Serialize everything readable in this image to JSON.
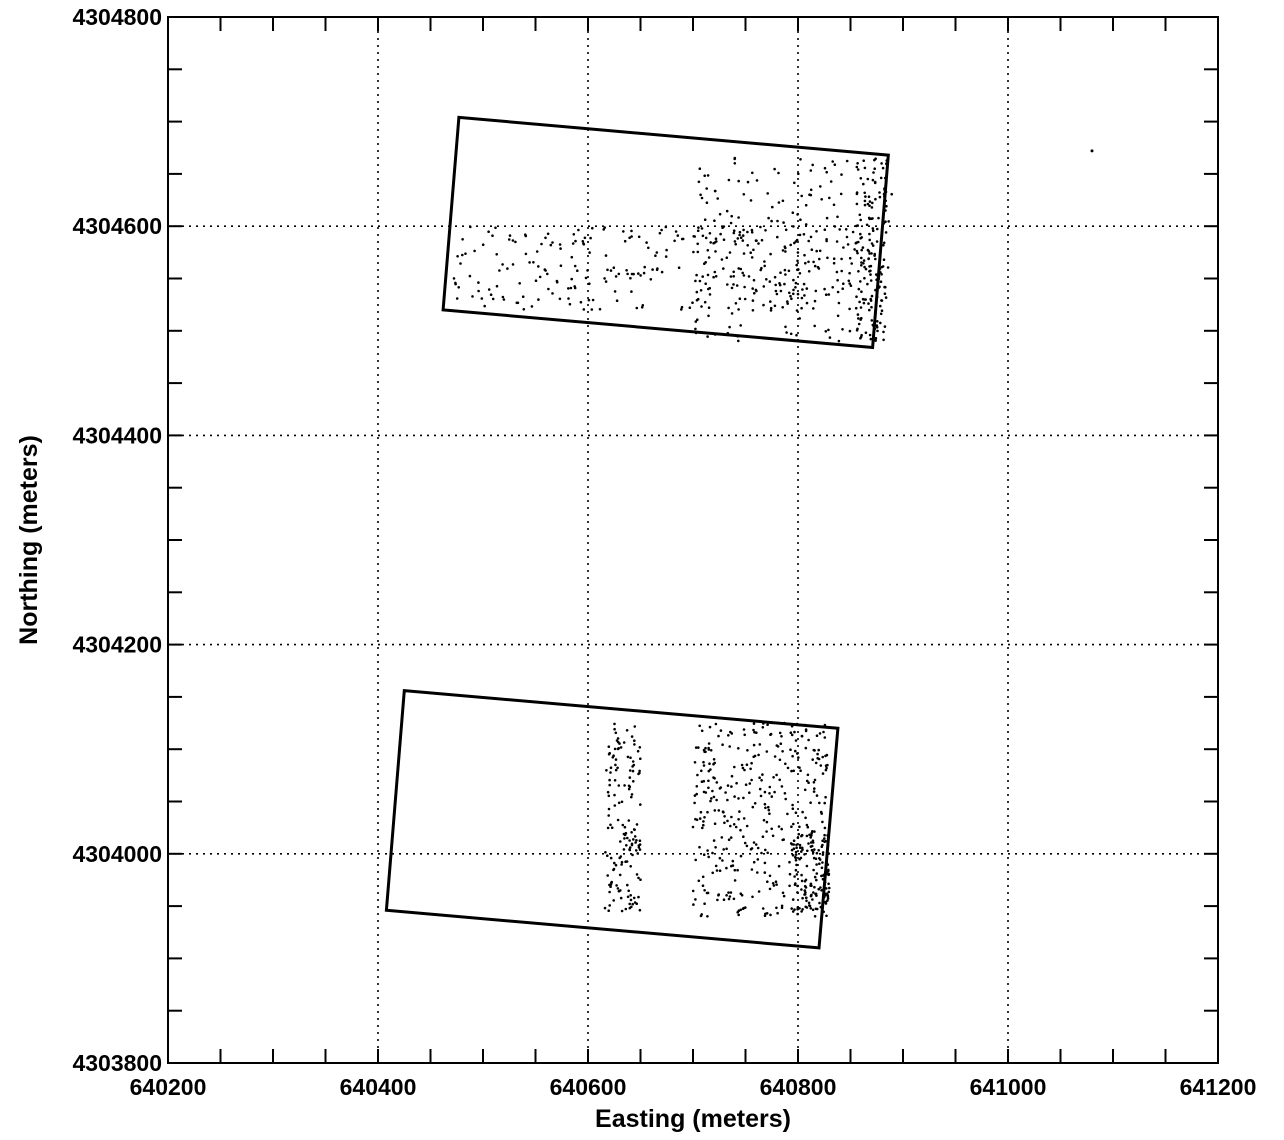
{
  "chart_data": {
    "type": "scatter",
    "title": "",
    "xlabel": "Easting (meters)",
    "ylabel": "Northing (meters)",
    "xlim": [
      640200,
      641200
    ],
    "ylim": [
      4303800,
      4304800
    ],
    "x_tick_labels": [
      "640200",
      "640400",
      "640600",
      "640800",
      "641000",
      "641200"
    ],
    "y_tick_labels": [
      "4303800",
      "4304000",
      "4304200",
      "4304400",
      "4304600",
      "4304800"
    ],
    "grid": true,
    "grid_style": "dotted",
    "legend": "none",
    "survey_areas": [
      {
        "name": "upper",
        "outline": [
          [
            640477,
            4304704
          ],
          [
            640886,
            4304668
          ],
          [
            640871,
            4304484
          ],
          [
            640462,
            4304520
          ]
        ],
        "point_clusters": [
          {
            "x": [
              640470,
              640880
            ],
            "y": [
              4304520,
              4304600
            ],
            "count": 300
          },
          {
            "x": [
              640700,
              640890
            ],
            "y": [
              4304490,
              4304670
            ],
            "count": 220
          },
          {
            "x": [
              640855,
              640885
            ],
            "y": [
              4304490,
              4304670
            ],
            "count": 120
          }
        ]
      },
      {
        "name": "lower",
        "outline": [
          [
            640425,
            4304156
          ],
          [
            640838,
            4304120
          ],
          [
            640820,
            4303910
          ],
          [
            640408,
            4303946
          ]
        ],
        "point_clusters": [
          {
            "x": [
              640616,
              640650
            ],
            "y": [
              4303945,
              4304125
            ],
            "count": 150
          },
          {
            "x": [
              640700,
              640830
            ],
            "y": [
              4303940,
              4304125
            ],
            "count": 380
          },
          {
            "x": [
              640795,
              640830
            ],
            "y": [
              4303940,
              4304020
            ],
            "count": 120
          }
        ]
      }
    ],
    "isolated_points": [
      {
        "x": 641080,
        "y": 4304672
      }
    ]
  }
}
